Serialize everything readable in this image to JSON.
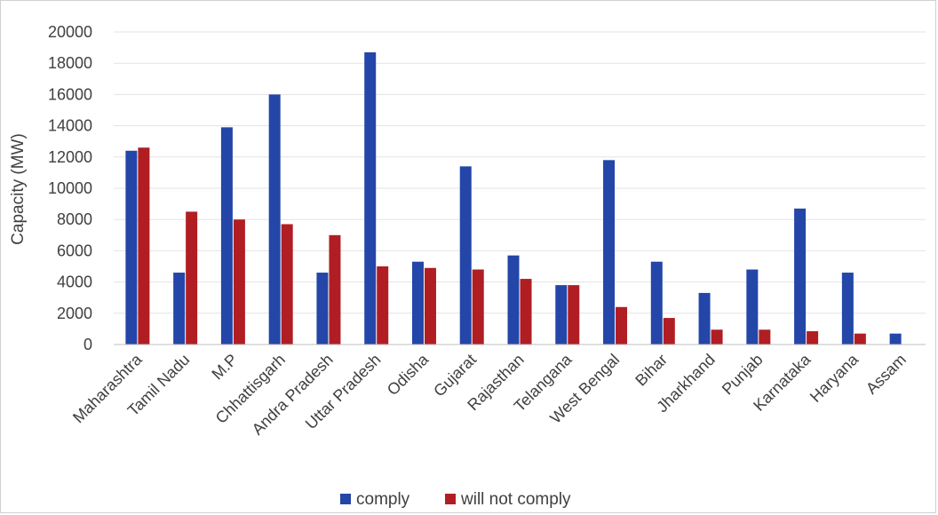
{
  "chart_data": {
    "type": "bar",
    "title": "",
    "xlabel": "",
    "ylabel": "Capacity (MW)",
    "ylim": [
      0,
      20000
    ],
    "yticks": [
      0,
      2000,
      4000,
      6000,
      8000,
      10000,
      12000,
      14000,
      16000,
      18000,
      20000
    ],
    "grid": true,
    "legend_position": "bottom",
    "categories": [
      "Maharashtra",
      "Tamil Nadu",
      "M.P",
      "Chhattisgarh",
      "Andra Pradesh",
      "Uttar Pradesh",
      "Odisha",
      "Gujarat",
      "Rajasthan",
      "Telangana",
      "West Bengal",
      "Bihar",
      "Jharkhand",
      "Punjab",
      "Karnataka",
      "Haryana",
      "Assam"
    ],
    "series": [
      {
        "name": "comply",
        "color": "#2346a8",
        "values": [
          12400,
          4600,
          13900,
          16000,
          4600,
          18700,
          5300,
          11400,
          5700,
          3800,
          11800,
          5300,
          3300,
          4800,
          8700,
          4600,
          700
        ]
      },
      {
        "name": "will not comply",
        "color": "#b01e23",
        "values": [
          12600,
          8500,
          8000,
          7700,
          7000,
          5000,
          4900,
          4800,
          4200,
          3800,
          2400,
          1700,
          950,
          950,
          850,
          700,
          0
        ]
      }
    ]
  }
}
